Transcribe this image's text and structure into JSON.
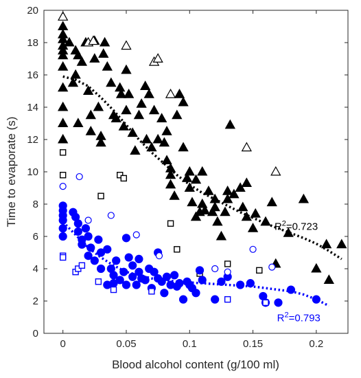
{
  "chart_data": {
    "type": "scatter",
    "xlabel": "Blood alcohol content (g/100 ml)",
    "ylabel": "Time to evaporate (s)",
    "xlim": [
      -0.015,
      0.225
    ],
    "ylim": [
      0,
      20
    ],
    "x_ticks": [
      0,
      0.05,
      0.1,
      0.15,
      0.2
    ],
    "x_tick_labels": [
      "0",
      "0.05",
      "0.1",
      "0.15",
      "0.2"
    ],
    "y_ticks": [
      0,
      2,
      4,
      6,
      8,
      10,
      12,
      14,
      16,
      18,
      20
    ],
    "y_tick_labels": [
      "0",
      "2",
      "4",
      "6",
      "8",
      "10",
      "12",
      "14",
      "16",
      "18",
      "20"
    ],
    "grid": false,
    "series": [
      {
        "color": "#000000",
        "marker": "triangle-filled",
        "points": [
          [
            0,
            19.0
          ],
          [
            0,
            18.5
          ],
          [
            0,
            18.2
          ],
          [
            0,
            17.8
          ],
          [
            0,
            17.5
          ],
          [
            0,
            17.2
          ],
          [
            0,
            16.5
          ],
          [
            0,
            15.2
          ],
          [
            0,
            14.0
          ],
          [
            0,
            13.0
          ],
          [
            0,
            12.0
          ],
          [
            0.005,
            18.0
          ],
          [
            0.008,
            15.5
          ],
          [
            0.01,
            17.5
          ],
          [
            0.01,
            16.0
          ],
          [
            0.012,
            17.2
          ],
          [
            0.012,
            13.0
          ],
          [
            0.015,
            16.8
          ],
          [
            0.018,
            18.0
          ],
          [
            0.02,
            15.0
          ],
          [
            0.022,
            13.5
          ],
          [
            0.022,
            12.5
          ],
          [
            0.025,
            18.1
          ],
          [
            0.025,
            17.0
          ],
          [
            0.028,
            14.0
          ],
          [
            0.03,
            11.8
          ],
          [
            0.03,
            12.2
          ],
          [
            0.032,
            17.3
          ],
          [
            0.033,
            18.0
          ],
          [
            0.035,
            16.5
          ],
          [
            0.038,
            15.5
          ],
          [
            0.04,
            13.5
          ],
          [
            0.042,
            13.3
          ],
          [
            0.045,
            15.2
          ],
          [
            0.046,
            14.8
          ],
          [
            0.048,
            12.8
          ],
          [
            0.05,
            16.3
          ],
          [
            0.05,
            13.8
          ],
          [
            0.052,
            14.8
          ],
          [
            0.055,
            12.4
          ],
          [
            0.057,
            11.3
          ],
          [
            0.06,
            13.5
          ],
          [
            0.062,
            14.2
          ],
          [
            0.065,
            15.3
          ],
          [
            0.066,
            12.0
          ],
          [
            0.068,
            14.8
          ],
          [
            0.07,
            11.5
          ],
          [
            0.072,
            13.8
          ],
          [
            0.075,
            12.0
          ],
          [
            0.078,
            13.3
          ],
          [
            0.08,
            11.8
          ],
          [
            0.082,
            12.5
          ],
          [
            0.082,
            10.7
          ],
          [
            0.085,
            10.2
          ],
          [
            0.085,
            9.8
          ],
          [
            0.085,
            9.2
          ],
          [
            0.088,
            8.5
          ],
          [
            0.09,
            13.5
          ],
          [
            0.092,
            14.8
          ],
          [
            0.095,
            14.3
          ],
          [
            0.095,
            11.5
          ],
          [
            0.098,
            9.6
          ],
          [
            0.1,
            10.0
          ],
          [
            0.1,
            9.0
          ],
          [
            0.102,
            8.1
          ],
          [
            0.105,
            9.5
          ],
          [
            0.105,
            7.2
          ],
          [
            0.108,
            7.5
          ],
          [
            0.11,
            10.0
          ],
          [
            0.11,
            8.0
          ],
          [
            0.112,
            7.6
          ],
          [
            0.115,
            8.8
          ],
          [
            0.118,
            7.5
          ],
          [
            0.12,
            8.3
          ],
          [
            0.12,
            7.8
          ],
          [
            0.122,
            6.9
          ],
          [
            0.125,
            6.0
          ],
          [
            0.128,
            7.5
          ],
          [
            0.13,
            8.8
          ],
          [
            0.13,
            8.3
          ],
          [
            0.132,
            12.9
          ],
          [
            0.135,
            8.6
          ],
          [
            0.14,
            9.0
          ],
          [
            0.142,
            7.8
          ],
          [
            0.145,
            9.3
          ],
          [
            0.145,
            7.2
          ],
          [
            0.15,
            6.5
          ],
          [
            0.152,
            7.4
          ],
          [
            0.16,
            6.9
          ],
          [
            0.165,
            8.1
          ],
          [
            0.168,
            4.3
          ],
          [
            0.178,
            6.2
          ],
          [
            0.19,
            8.3
          ],
          [
            0.2,
            4.0
          ],
          [
            0.208,
            5.5
          ],
          [
            0.21,
            3.3
          ],
          [
            0.22,
            5.5
          ]
        ]
      },
      {
        "color": "#000000",
        "marker": "triangle-open",
        "points": [
          [
            0,
            19.6
          ],
          [
            0.02,
            18.0
          ],
          [
            0.024,
            18.1
          ],
          [
            0.05,
            17.8
          ],
          [
            0.072,
            16.8
          ],
          [
            0.075,
            17.0
          ],
          [
            0.085,
            14.8
          ],
          [
            0.145,
            11.5
          ],
          [
            0.168,
            10.0
          ]
        ]
      },
      {
        "color": "#000000",
        "marker": "square-open",
        "points": [
          [
            0,
            11.2
          ],
          [
            0,
            9.8
          ],
          [
            0.03,
            8.5
          ],
          [
            0.045,
            9.8
          ],
          [
            0.048,
            9.6
          ],
          [
            0.085,
            6.8
          ],
          [
            0.09,
            5.2
          ],
          [
            0.108,
            3.7
          ],
          [
            0.13,
            4.3
          ],
          [
            0.155,
            3.9
          ]
        ]
      },
      {
        "color": "#0000ff",
        "marker": "circle-filled",
        "points": [
          [
            0,
            7.9
          ],
          [
            0,
            7.6
          ],
          [
            0,
            7.3
          ],
          [
            0,
            7.0
          ],
          [
            0,
            6.5
          ],
          [
            0,
            6.0
          ],
          [
            0.008,
            7.5
          ],
          [
            0.01,
            7.2
          ],
          [
            0.012,
            6.8
          ],
          [
            0.012,
            6.3
          ],
          [
            0.015,
            5.8
          ],
          [
            0.015,
            5.5
          ],
          [
            0.018,
            6.5
          ],
          [
            0.02,
            6.0
          ],
          [
            0.02,
            4.8
          ],
          [
            0.022,
            5.3
          ],
          [
            0.025,
            4.5
          ],
          [
            0.028,
            5.8
          ],
          [
            0.03,
            5.0
          ],
          [
            0.03,
            4.0
          ],
          [
            0.035,
            5.2
          ],
          [
            0.035,
            3.0
          ],
          [
            0.038,
            4.0
          ],
          [
            0.04,
            3.6
          ],
          [
            0.04,
            3.1
          ],
          [
            0.042,
            4.5
          ],
          [
            0.045,
            3.3
          ],
          [
            0.048,
            3.8
          ],
          [
            0.05,
            3.0
          ],
          [
            0.05,
            5.9
          ],
          [
            0.052,
            4.7
          ],
          [
            0.055,
            4.2
          ],
          [
            0.055,
            3.5
          ],
          [
            0.058,
            3.0
          ],
          [
            0.06,
            4.6
          ],
          [
            0.06,
            3.8
          ],
          [
            0.062,
            3.4
          ],
          [
            0.065,
            3.3
          ],
          [
            0.068,
            4.0
          ],
          [
            0.07,
            2.8
          ],
          [
            0.072,
            3.8
          ],
          [
            0.075,
            5.0
          ],
          [
            0.075,
            3.4
          ],
          [
            0.078,
            3.2
          ],
          [
            0.08,
            2.5
          ],
          [
            0.082,
            3.5
          ],
          [
            0.085,
            3.0
          ],
          [
            0.088,
            3.6
          ],
          [
            0.09,
            2.9
          ],
          [
            0.092,
            3.1
          ],
          [
            0.095,
            2.1
          ],
          [
            0.098,
            3.2
          ],
          [
            0.1,
            3.0
          ],
          [
            0.102,
            2.8
          ],
          [
            0.105,
            2.5
          ],
          [
            0.108,
            3.9
          ],
          [
            0.11,
            3.3
          ],
          [
            0.12,
            2.1
          ],
          [
            0.125,
            3.2
          ],
          [
            0.13,
            3.5
          ],
          [
            0.14,
            3.0
          ],
          [
            0.148,
            3.1
          ],
          [
            0.158,
            2.3
          ],
          [
            0.16,
            1.9
          ],
          [
            0.17,
            1.9
          ],
          [
            0.18,
            2.7
          ],
          [
            0.2,
            2.1
          ]
        ]
      },
      {
        "color": "#0000ff",
        "marker": "circle-open",
        "points": [
          [
            0,
            9.1
          ],
          [
            0.013,
            9.7
          ],
          [
            0.02,
            7.0
          ],
          [
            0.038,
            7.3
          ],
          [
            0.058,
            6.1
          ],
          [
            0.076,
            4.8
          ],
          [
            0.12,
            4.0
          ],
          [
            0.13,
            3.8
          ],
          [
            0.15,
            5.2
          ],
          [
            0.165,
            4.1
          ]
        ]
      },
      {
        "color": "#0000ff",
        "marker": "square-open",
        "points": [
          [
            0,
            4.8
          ],
          [
            0,
            4.7
          ],
          [
            0.01,
            3.8
          ],
          [
            0.012,
            4.0
          ],
          [
            0.015,
            4.2
          ],
          [
            0.028,
            3.2
          ],
          [
            0.04,
            2.7
          ],
          [
            0.07,
            2.6
          ],
          [
            0.13,
            2.1
          ],
          [
            0.16,
            1.9
          ]
        ]
      }
    ],
    "trend_lines": [
      {
        "color": "#000000",
        "style": "dotted",
        "x": [
          0,
          0.01,
          0.02,
          0.03,
          0.04,
          0.05,
          0.06,
          0.07,
          0.08,
          0.09,
          0.1,
          0.11,
          0.12,
          0.13,
          0.14,
          0.15,
          0.16,
          0.17,
          0.18,
          0.19,
          0.2,
          0.21,
          0.22
        ],
        "y": [
          15.9,
          15.7,
          15.3,
          14.6,
          13.8,
          12.9,
          12.0,
          11.2,
          10.5,
          9.8,
          9.2,
          8.7,
          8.3,
          7.9,
          7.5,
          7.15,
          6.8,
          6.5,
          6.2,
          5.9,
          5.55,
          5.1,
          4.6
        ],
        "label": "R²=0.723"
      },
      {
        "color": "#0000ff",
        "style": "dotted",
        "x": [
          0,
          0.01,
          0.02,
          0.03,
          0.04,
          0.05,
          0.06,
          0.07,
          0.08,
          0.09,
          0.1,
          0.11,
          0.12,
          0.13,
          0.14,
          0.15,
          0.16,
          0.17,
          0.18,
          0.19,
          0.2,
          0.21
        ],
        "y": [
          6.9,
          6.1,
          5.3,
          4.7,
          4.2,
          3.8,
          3.6,
          3.4,
          3.3,
          3.2,
          3.15,
          3.1,
          3.05,
          3.0,
          2.95,
          2.9,
          2.8,
          2.7,
          2.6,
          2.4,
          2.1,
          1.7
        ],
        "label": "R²=0.793"
      }
    ]
  }
}
